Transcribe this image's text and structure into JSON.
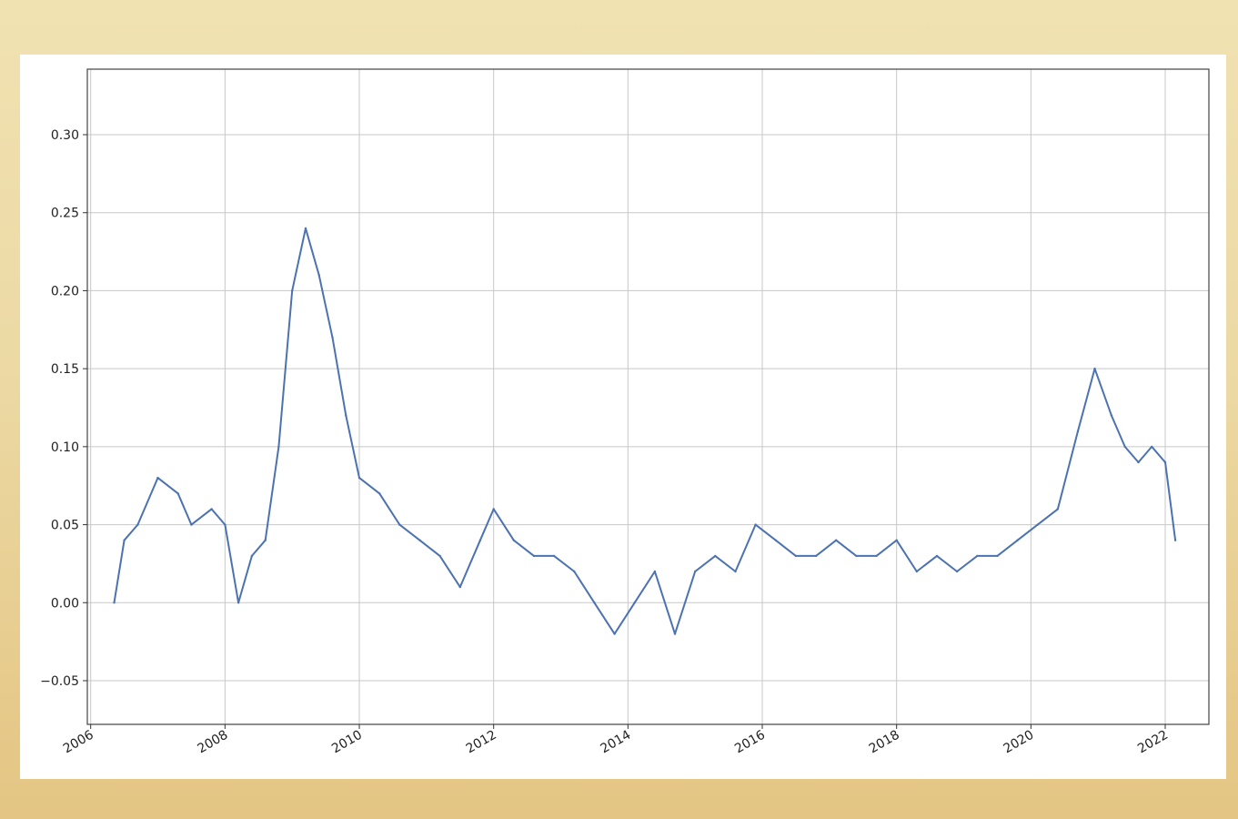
{
  "chart_data": {
    "type": "line",
    "title": "",
    "xlabel": "",
    "ylabel": "",
    "xlim": [
      2005.95,
      2022.65
    ],
    "ylim": [
      -0.078,
      0.342
    ],
    "grid": true,
    "legend": "none",
    "line_color": "#4c72b0",
    "x_ticks": [
      "2006",
      "2008",
      "2010",
      "2012",
      "2014",
      "2016",
      "2018",
      "2020",
      "2022"
    ],
    "y_ticks": [
      "0.30",
      "0.25",
      "0.20",
      "0.15",
      "0.10",
      "0.05",
      "0.00",
      "−0.05"
    ],
    "y_tick_values": [
      0.3,
      0.25,
      0.2,
      0.15,
      0.1,
      0.05,
      0.0,
      -0.05
    ],
    "series": [
      {
        "values": [
          [
            2006.35,
            0.0
          ],
          [
            2006.5,
            0.04
          ],
          [
            2006.7,
            0.05
          ],
          [
            2007.0,
            0.08
          ],
          [
            2007.3,
            0.07
          ],
          [
            2007.5,
            0.05
          ],
          [
            2007.8,
            0.06
          ],
          [
            2008.0,
            0.05
          ],
          [
            2008.2,
            0.0
          ],
          [
            2008.4,
            0.03
          ],
          [
            2008.6,
            0.04
          ],
          [
            2008.8,
            0.1
          ],
          [
            2009.0,
            0.2
          ],
          [
            2009.2,
            0.24
          ],
          [
            2009.4,
            0.21
          ],
          [
            2009.6,
            0.17
          ],
          [
            2009.8,
            0.12
          ],
          [
            2010.0,
            0.08
          ],
          [
            2010.3,
            0.07
          ],
          [
            2010.6,
            0.05
          ],
          [
            2010.9,
            0.04
          ],
          [
            2011.2,
            0.03
          ],
          [
            2011.5,
            0.01
          ],
          [
            2011.8,
            0.04
          ],
          [
            2012.0,
            0.06
          ],
          [
            2012.3,
            0.04
          ],
          [
            2012.6,
            0.03
          ],
          [
            2012.9,
            0.03
          ],
          [
            2013.2,
            0.02
          ],
          [
            2013.5,
            0.0
          ],
          [
            2013.8,
            -0.02
          ],
          [
            2014.1,
            0.0
          ],
          [
            2014.4,
            0.02
          ],
          [
            2014.7,
            -0.02
          ],
          [
            2015.0,
            0.02
          ],
          [
            2015.3,
            0.03
          ],
          [
            2015.6,
            0.02
          ],
          [
            2015.9,
            0.05
          ],
          [
            2016.2,
            0.04
          ],
          [
            2016.5,
            0.03
          ],
          [
            2016.8,
            0.03
          ],
          [
            2017.1,
            0.04
          ],
          [
            2017.4,
            0.03
          ],
          [
            2017.7,
            0.03
          ],
          [
            2018.0,
            0.04
          ],
          [
            2018.3,
            0.02
          ],
          [
            2018.6,
            0.03
          ],
          [
            2018.9,
            0.02
          ],
          [
            2019.2,
            0.03
          ],
          [
            2019.5,
            0.03
          ],
          [
            2019.8,
            0.04
          ],
          [
            2020.1,
            0.05
          ],
          [
            2020.4,
            0.06
          ],
          [
            2020.7,
            0.11
          ],
          [
            2020.95,
            0.15
          ],
          [
            2021.2,
            0.12
          ],
          [
            2021.4,
            0.1
          ],
          [
            2021.6,
            0.09
          ],
          [
            2021.8,
            0.1
          ],
          [
            2022.0,
            0.09
          ],
          [
            2022.15,
            0.04
          ]
        ]
      }
    ]
  }
}
